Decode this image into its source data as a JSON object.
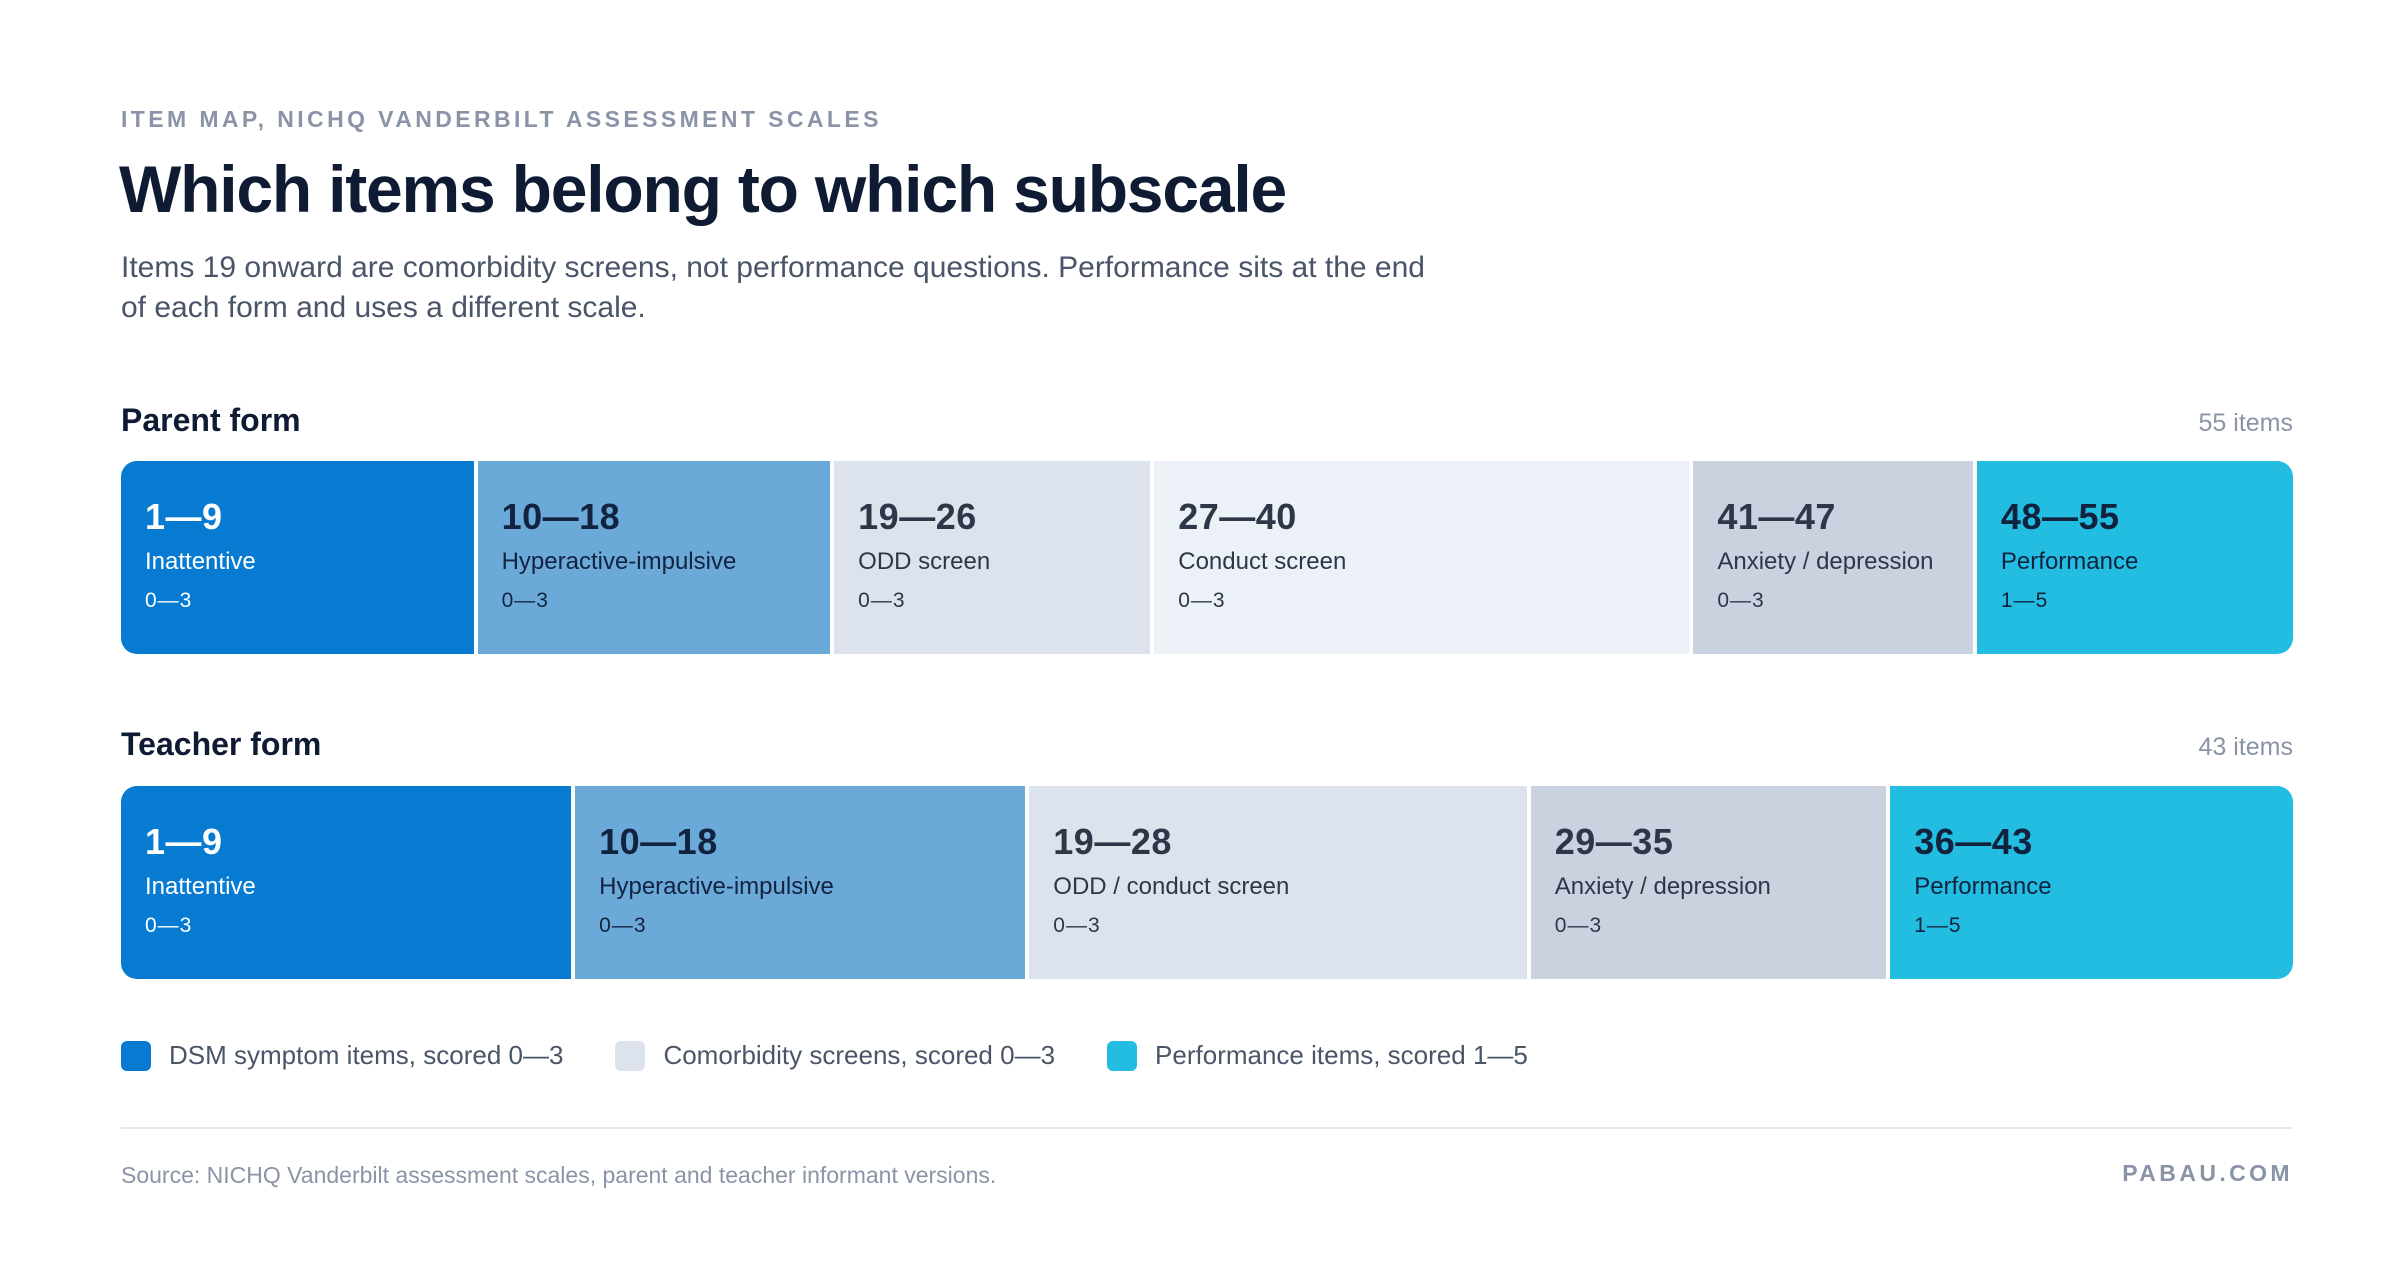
{
  "header": {
    "eyebrow": "ITEM MAP, NICHQ VANDERBILT ASSESSMENT SCALES",
    "title": "Which items belong to which subscale",
    "subtitle": "Items 19 onward are comorbidity screens, not performance questions. Performance sits at the end of each form and uses a different scale."
  },
  "forms": [
    {
      "title": "Parent form",
      "count_label": "55 items",
      "total_items": 55,
      "segments": [
        {
          "range": "1—9",
          "label": "Inattentive",
          "scale": "0—3",
          "items": 9,
          "category": "dsm-inattentive",
          "fill": "#077bd2",
          "text_color": "#ffffff"
        },
        {
          "range": "10—18",
          "label": "Hyperactive-impulsive",
          "scale": "0—3",
          "items": 9,
          "category": "dsm-hyperactive",
          "fill": "#6ba9d9",
          "text_color": "#12233f"
        },
        {
          "range": "19—26",
          "label": "ODD screen",
          "scale": "0—3",
          "items": 8,
          "category": "comorbidity",
          "fill": "#dde3ed",
          "text_color": "#2d3748"
        },
        {
          "range": "27—40",
          "label": "Conduct screen",
          "scale": "0—3",
          "items": 14,
          "category": "comorbidity",
          "fill": "#ecf0f7",
          "text_color": "#2d3748"
        },
        {
          "range": "41—47",
          "label": "Anxiety / depression",
          "scale": "0—3",
          "items": 7,
          "category": "comorbidity",
          "fill": "#c9d2de",
          "text_color": "#2d3748"
        },
        {
          "range": "48—55",
          "label": "Performance",
          "scale": "1—5",
          "items": 8,
          "category": "performance",
          "fill": "#22bde1",
          "text_color": "#10223d"
        }
      ]
    },
    {
      "title": "Teacher form",
      "count_label": "43 items",
      "total_items": 43,
      "segments": [
        {
          "range": "1—9",
          "label": "Inattentive",
          "scale": "0—3",
          "items": 9,
          "category": "dsm-inattentive",
          "fill": "#077bd2",
          "text_color": "#ffffff"
        },
        {
          "range": "10—18",
          "label": "Hyperactive-impulsive",
          "scale": "0—3",
          "items": 9,
          "category": "dsm-hyperactive",
          "fill": "#6ba9d9",
          "text_color": "#12233f"
        },
        {
          "range": "19—28",
          "label": "ODD / conduct screen",
          "scale": "0—3",
          "items": 10,
          "category": "comorbidity",
          "fill": "#dde3ed",
          "text_color": "#2d3748"
        },
        {
          "range": "29—35",
          "label": "Anxiety / depression",
          "scale": "0—3",
          "items": 7,
          "category": "comorbidity",
          "fill": "#c9d2de",
          "text_color": "#2d3748"
        },
        {
          "range": "36—43",
          "label": "Performance",
          "scale": "1—5",
          "items": 8,
          "category": "performance",
          "fill": "#22bde1",
          "text_color": "#10223d"
        }
      ]
    }
  ],
  "legend": [
    {
      "label": "DSM symptom items, scored 0—3",
      "color": "#077bd2"
    },
    {
      "label": "Comorbidity screens, scored 0—3",
      "color": "#dde3ed"
    },
    {
      "label": "Performance items, scored 1—5",
      "color": "#22bde1"
    }
  ],
  "footer": {
    "source": "Source: NICHQ Vanderbilt assessment scales, parent and teacher informant versions.",
    "brand": "PABAU.COM"
  }
}
